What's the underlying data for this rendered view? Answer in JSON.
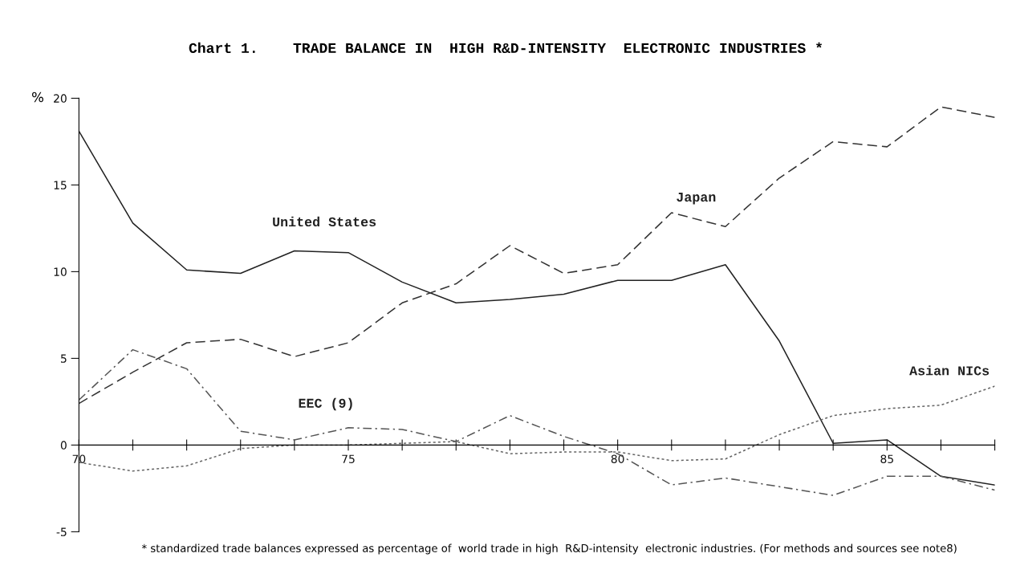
{
  "chart_data": {
    "type": "line",
    "title": "Chart 1.    TRADE BALANCE IN  HIGH R&D-INTENSITY  ELECTRONIC INDUSTRIES *",
    "ylabel": "%",
    "x": [
      1970,
      1971,
      1972,
      1973,
      1974,
      1975,
      1976,
      1977,
      1978,
      1979,
      1980,
      1981,
      1982,
      1983,
      1984,
      1985,
      1986,
      1987
    ],
    "xlim": [
      1970,
      1987
    ],
    "xticks": [
      {
        "value": 1970,
        "label": "70"
      },
      {
        "value": 1971,
        "label": null
      },
      {
        "value": 1972,
        "label": null
      },
      {
        "value": 1973,
        "label": null
      },
      {
        "value": 1974,
        "label": null
      },
      {
        "value": 1975,
        "label": "75"
      },
      {
        "value": 1976,
        "label": null
      },
      {
        "value": 1977,
        "label": null
      },
      {
        "value": 1978,
        "label": null
      },
      {
        "value": 1979,
        "label": null
      },
      {
        "value": 1980,
        "label": "80"
      },
      {
        "value": 1981,
        "label": null
      },
      {
        "value": 1982,
        "label": null
      },
      {
        "value": 1983,
        "label": null
      },
      {
        "value": 1984,
        "label": null
      },
      {
        "value": 1985,
        "label": "85"
      },
      {
        "value": 1986,
        "label": null
      },
      {
        "value": 1987,
        "label": null
      }
    ],
    "ylim": [
      -5,
      20
    ],
    "yticks": [
      -5,
      0,
      5,
      10,
      15,
      20
    ],
    "grid": false,
    "legend": false,
    "marker": "none",
    "series": [
      {
        "name": "United States",
        "color": "#222222",
        "line_style": "solid",
        "values": [
          18.1,
          12.8,
          10.1,
          9.9,
          11.2,
          11.1,
          9.4,
          8.2,
          8.4,
          8.7,
          9.5,
          9.5,
          10.4,
          6.0,
          0.1,
          0.3,
          -1.8,
          -2.3
        ]
      },
      {
        "name": "Japan",
        "color": "#333333",
        "line_style": "dashed",
        "values": [
          2.4,
          4.2,
          5.9,
          6.1,
          5.1,
          5.9,
          8.2,
          9.3,
          11.5,
          9.9,
          10.4,
          13.4,
          12.6,
          15.4,
          17.5,
          17.2,
          19.5,
          18.9
        ]
      },
      {
        "name": "EEC (9)",
        "color": "#555555",
        "line_style": "dashdot",
        "values": [
          2.6,
          5.5,
          4.4,
          0.8,
          0.3,
          1.0,
          0.9,
          0.2,
          1.7,
          0.5,
          -0.5,
          -2.3,
          -1.9,
          -2.4,
          -2.9,
          -1.8,
          -1.8,
          -2.6
        ]
      },
      {
        "name": "Asian NICs",
        "color": "#666666",
        "line_style": "dotted",
        "values": [
          -1.0,
          -1.5,
          -1.2,
          -0.2,
          0.0,
          0.0,
          0.1,
          0.2,
          -0.5,
          -0.4,
          -0.4,
          -0.9,
          -0.8,
          0.6,
          1.7,
          2.1,
          2.3,
          3.4
        ]
      }
    ],
    "annotations": [
      "* standardized trade balances expressed as percentage of  world trade in high  R&D-intensity  electronic industries. (For methods and sources see note8)"
    ]
  }
}
